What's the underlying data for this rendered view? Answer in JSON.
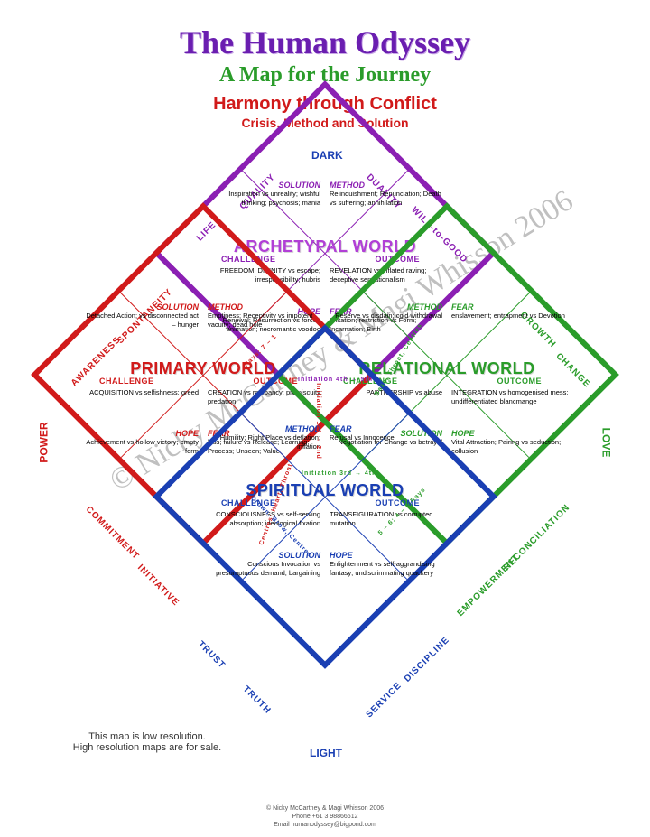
{
  "header": {
    "title": "The Human Odyssey",
    "subtitle": "A Map for the Journey",
    "line3": "Harmony through Conflict",
    "line4": "Crisis, Method and Solution"
  },
  "colors": {
    "purple": "#8b1fb3",
    "red": "#d11a1a",
    "green": "#2a9c2a",
    "blue": "#1a3fb3",
    "purple_title": "#b13fd6",
    "red_title": "#d11a1a",
    "green_title": "#2a9c2a",
    "blue_title": "#1a3fb3"
  },
  "axes": {
    "top": "DARK",
    "bottom": "LIGHT",
    "left": "POWER",
    "right": "LOVE"
  },
  "edges": {
    "tl1": "LIFE",
    "tl2": "QUALITY",
    "tr1": "DUALITY",
    "tr2": "WILL-to-GOOD",
    "ml1": "AWARENESS",
    "ml2": "SPONTANEITY",
    "mr1": "GROWTH",
    "mr2": "CHANGE",
    "bl1": "COMMITMENT",
    "bl2": "INITIATIVE",
    "br1": "RECONCILIATION",
    "br2": "EMPOWERMENT",
    "bbl1": "TRUST",
    "bbl2": "TRUTH",
    "bbr1": "DISCIPLINE",
    "bbr2": "SERVICE"
  },
  "worlds": {
    "archetypal": {
      "title": "ARCHETYPAL WORLD",
      "title_color": "#b13fd6",
      "line_color": "#8b1fb3",
      "cells": {
        "solution": {
          "lab": "SOLUTION",
          "txt": "Inspiration vs unreality; wishful thinking; psychosis; mania"
        },
        "method": {
          "lab": "METHOD",
          "txt": "Relinquishment; Renunciation; Death vs suffering; annihilation"
        },
        "challenge": {
          "lab": "CHALLENGE",
          "txt": "FREEDOM; DIVINITY vs escape; irresponsibility; hubris"
        },
        "outcome": {
          "lab": "OUTCOME",
          "txt": "REVELATION vs inflated raving; deceptive sensationalism"
        },
        "hope": {
          "lab": "HOPE",
          "txt": "Renewal; Resurrection vs forced animation; necromantic voodoo"
        },
        "fear": {
          "lab": "FEAR",
          "txt": "Imitation; restriction vs Form; Incarnation; Birth"
        }
      }
    },
    "primary": {
      "title": "PRIMARY WORLD",
      "title_color": "#d11a1a",
      "line_color": "#d11a1a",
      "cells": {
        "solution": {
          "lab": "SOLUTION",
          "txt": "Detached Action; vs disconnected act – hunger"
        },
        "method": {
          "lab": "METHOD",
          "txt": "Emptiness; Receptivity vs impotent vacuity; dead hole"
        },
        "challenge": {
          "lab": "CHALLENGE",
          "txt": "ACQUISITION vs selfishness; greed"
        },
        "outcome": {
          "lab": "OUTCOME",
          "txt": "CREATION vs rampancy; promiscuity; predation"
        },
        "hope": {
          "lab": "HOPE",
          "txt": "Achievement vs hollow victory; empty form"
        },
        "fear": {
          "lab": "FEAR",
          "txt": "loss; failure vs Release; Learning; Process; Unseen; Value"
        }
      }
    },
    "relational": {
      "title": "RELATIONAL WORLD",
      "title_color": "#2a9c2a",
      "line_color": "#2a9c2a",
      "cells": {
        "method": {
          "lab": "METHOD",
          "txt": "Reserve vs disdain; cold withdrawal"
        },
        "fearTop": {
          "lab": "FEAR",
          "txt": "enslavement; entrapment vs Devotion"
        },
        "challenge": {
          "lab": "CHALLENGE",
          "txt": "PARTNERSHIP vs abuse"
        },
        "outcome": {
          "lab": "OUTCOME",
          "txt": "INTEGRATION vs homogenised mess; undifferentiated blancmange"
        },
        "solution": {
          "lab": "SOLUTION",
          "txt": "Negotiation for Change vs betrayal"
        },
        "hope": {
          "lab": "HOPE",
          "txt": "Vital Attraction; Pairing vs seduction; collusion"
        }
      }
    },
    "spiritual": {
      "title": "SPIRITUAL WORLD",
      "title_color": "#1a3fb3",
      "line_color": "#1a3fb3",
      "cells": {
        "method": {
          "lab": "METHOD",
          "txt": "Humility; Right Place vs deflation; inflation"
        },
        "fearTop": {
          "lab": "FEAR",
          "txt": "Refusal vs Innocence"
        },
        "challenge": {
          "lab": "CHALLENGE",
          "txt": "CONSCIOUSNESS vs self-serving absorption; ideological fixation"
        },
        "outcome": {
          "lab": "OUTCOME",
          "txt": "TRANSFIGURATION vs corrupted mutation"
        },
        "solution": {
          "lab": "SOLUTION",
          "txt": "Conscious Invocation vs presumptuous demand; bargaining"
        },
        "hope": {
          "lab": "HOPE",
          "txt": "Enlightenment vs self-aggrandising fantasy; undiscriminating quackery"
        }
      }
    }
  },
  "inner_notes": {
    "rays74": "Rays: 7 – 1",
    "rays56": "5 – 6; 4 – 6 Rays",
    "init12": "Initiation 1st → 2nd",
    "init34": "Initiation 3rd → 4th",
    "init45": "Initiation 4th → 5th",
    "centresRed": "Centres: Heart, Throat",
    "centresGreen": "Base, Throat, Centres",
    "centresBlue": "Crown, Brow, Centres",
    "centresPurple": "Brow, Crown, Centres"
  },
  "watermark": "© Nicky McCartney & Magi Whisson 2006",
  "footer_note": "This map is low resolution.\nHigh resolution maps are for sale.",
  "credit": "© Nicky McCartney & Magi Whisson 2006\nPhone +61 3 98866612\nEmail humanodyssey@bigpond.com"
}
